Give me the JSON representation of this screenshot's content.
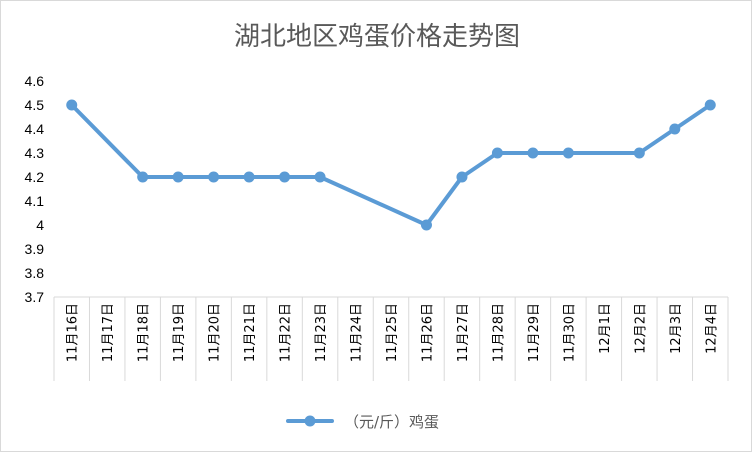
{
  "chart_data": {
    "type": "line",
    "title": "湖北地区鸡蛋价格走势图",
    "categories": [
      "11月16日",
      "11月17日",
      "11月18日",
      "11月19日",
      "11月20日",
      "11月21日",
      "11月22日",
      "11月23日",
      "11月24日",
      "11月25日",
      "11月26日",
      "11月27日",
      "11月28日",
      "11月29日",
      "11月30日",
      "12月1日",
      "12月2日",
      "12月3日",
      "12月4日"
    ],
    "series": [
      {
        "name": "（元/斤）鸡蛋",
        "color": "#5b9bd5",
        "values": [
          4.5,
          null,
          4.2,
          4.2,
          4.2,
          4.2,
          4.2,
          4.2,
          null,
          null,
          4.0,
          4.2,
          4.3,
          4.3,
          4.3,
          null,
          4.3,
          4.4,
          4.5
        ]
      }
    ],
    "yticks": [
      "3.7",
      "3.8",
      "3.9",
      "4",
      "4.1",
      "4.2",
      "4.3",
      "4.4",
      "4.5",
      "4.6"
    ],
    "ylim": [
      3.7,
      4.6
    ],
    "grid": false,
    "legend_position": "bottom"
  }
}
